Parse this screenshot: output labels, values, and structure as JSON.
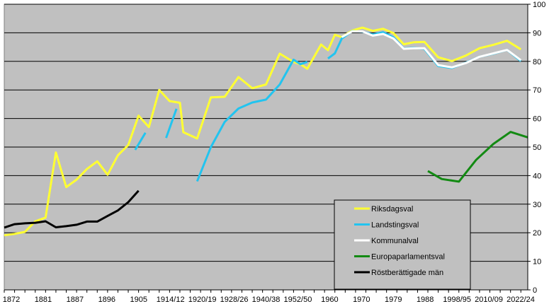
{
  "colors": {
    "plot_background": "#c0c0c0",
    "gridline": "#000000",
    "riksdagsval": "#ffff33",
    "landstingsval": "#22c4ef",
    "kommunalval": "#ffffff",
    "europaparlamentsval": "#138a13",
    "rostberattigade": "#000000"
  },
  "chart_data": {
    "type": "line",
    "title": "",
    "xlabel": "",
    "ylabel": "",
    "xlim": [
      1872,
      2024
    ],
    "ylim": [
      0,
      100
    ],
    "grid": "horizontal",
    "legend_position": "bottom-right",
    "x_tick_labels": [
      "1872",
      "1881",
      "1887",
      "1896",
      "1905",
      "1914/12",
      "1920/19",
      "1928/26",
      "1940/38",
      "1952/50",
      "1960",
      "1970",
      "1979",
      "1988",
      "1998/95",
      "2010/09",
      "2022/24"
    ],
    "y_tick_labels": [
      "0",
      "10",
      "20",
      "30",
      "40",
      "50",
      "60",
      "70",
      "80",
      "90",
      "100"
    ],
    "series": [
      {
        "name": "Riksdagsval",
        "color": "#ffff33",
        "segments": [
          [
            [
              1872,
              19.1
            ],
            [
              1875,
              19.6
            ],
            [
              1878,
              20.3
            ],
            [
              1881,
              24.0
            ],
            [
              1884,
              25.3
            ],
            [
              1887,
              48.1
            ],
            [
              1890,
              36.0
            ],
            [
              1893,
              38.6
            ],
            [
              1896,
              42.3
            ],
            [
              1899,
              45.0
            ],
            [
              1902,
              40.3
            ],
            [
              1905,
              47.1
            ],
            [
              1908,
              50.7
            ],
            [
              1911,
              61.0
            ],
            [
              1914,
              57.0
            ],
            [
              1917,
              70.0
            ],
            [
              1920,
              66.1
            ],
            [
              1923,
              65.5
            ],
            [
              1924,
              55.2
            ],
            [
              1928,
              53.0
            ],
            [
              1932,
              67.4
            ],
            [
              1936,
              67.6
            ],
            [
              1940,
              74.5
            ],
            [
              1944,
              70.6
            ],
            [
              1948,
              71.9
            ],
            [
              1952,
              82.7
            ],
            [
              1956,
              79.8
            ],
            [
              1958,
              79.0
            ],
            [
              1960,
              77.4
            ],
            [
              1964,
              85.9
            ],
            [
              1966,
              83.9
            ],
            [
              1968,
              89.3
            ],
            [
              1970,
              88.5
            ],
            [
              1973,
              90.8
            ],
            [
              1976,
              91.8
            ],
            [
              1979,
              90.7
            ],
            [
              1982,
              91.4
            ],
            [
              1985,
              89.9
            ],
            [
              1988,
              86.0
            ],
            [
              1991,
              86.7
            ],
            [
              1994,
              86.8
            ],
            [
              1998,
              81.4
            ],
            [
              2002,
              80.1
            ],
            [
              2006,
              82.0
            ],
            [
              2010,
              84.6
            ],
            [
              2014,
              85.8
            ],
            [
              2018,
              87.2
            ],
            [
              2022,
              84.2
            ]
          ]
        ]
      },
      {
        "name": "Landstingsval",
        "color": "#22c4ef",
        "segments": [
          [
            [
              1910,
              49.0
            ],
            [
              1913,
              55.0
            ]
          ],
          [
            [
              1919,
              53.2
            ],
            [
              1922,
              63.4
            ]
          ],
          [
            [
              1928,
              38.0
            ],
            [
              1932,
              50.0
            ],
            [
              1936,
              58.8
            ],
            [
              1940,
              63.5
            ],
            [
              1944,
              65.6
            ],
            [
              1948,
              66.6
            ],
            [
              1952,
              71.9
            ],
            [
              1956,
              80.6
            ],
            [
              1958,
              79.0
            ],
            [
              1960,
              79.8
            ]
          ],
          [
            [
              1966,
              81.0
            ],
            [
              1968,
              82.8
            ],
            [
              1970,
              88.0
            ],
            [
              1973,
              90.6
            ],
            [
              1976,
              90.4
            ],
            [
              1979,
              89.4
            ],
            [
              1982,
              90.2
            ],
            [
              1985,
              88.4
            ],
            [
              1988,
              84.5
            ],
            [
              1991,
              84.7
            ],
            [
              1994,
              84.4
            ],
            [
              1998,
              78.4
            ],
            [
              2002,
              77.7
            ],
            [
              2006,
              79.5
            ],
            [
              2010,
              81.6
            ],
            [
              2014,
              82.7
            ],
            [
              2018,
              84.0
            ],
            [
              2022,
              80.1
            ]
          ]
        ]
      },
      {
        "name": "Kommunalval",
        "color": "#ffffff",
        "segments": [
          [
            [
              1970,
              88.5
            ],
            [
              1973,
              90.5
            ],
            [
              1976,
              90.5
            ],
            [
              1979,
              89.0
            ],
            [
              1982,
              89.6
            ],
            [
              1985,
              88.0
            ],
            [
              1988,
              84.4
            ],
            [
              1991,
              84.6
            ],
            [
              1994,
              84.6
            ],
            [
              1998,
              78.7
            ],
            [
              2002,
              77.9
            ],
            [
              2006,
              79.4
            ],
            [
              2010,
              81.6
            ],
            [
              2014,
              82.8
            ],
            [
              2018,
              84.0
            ],
            [
              2022,
              80.4
            ]
          ]
        ]
      },
      {
        "name": "Europaparlamentsval",
        "color": "#138a13",
        "segments": [
          [
            [
              1995,
              41.6
            ],
            [
              1999,
              38.8
            ],
            [
              2004,
              37.9
            ],
            [
              2009,
              45.5
            ],
            [
              2014,
              51.1
            ],
            [
              2019,
              55.3
            ],
            [
              2024,
              53.4
            ]
          ]
        ]
      },
      {
        "name": "Röstberättigade män",
        "color": "#000000",
        "segments": [
          [
            [
              1872,
              21.8
            ],
            [
              1875,
              23.0
            ],
            [
              1878,
              23.3
            ],
            [
              1881,
              23.5
            ],
            [
              1884,
              24.0
            ],
            [
              1887,
              21.9
            ],
            [
              1890,
              22.3
            ],
            [
              1893,
              22.8
            ],
            [
              1896,
              23.9
            ],
            [
              1899,
              23.9
            ],
            [
              1902,
              25.9
            ],
            [
              1905,
              27.8
            ],
            [
              1908,
              30.7
            ],
            [
              1911,
              34.7
            ]
          ]
        ]
      }
    ]
  }
}
